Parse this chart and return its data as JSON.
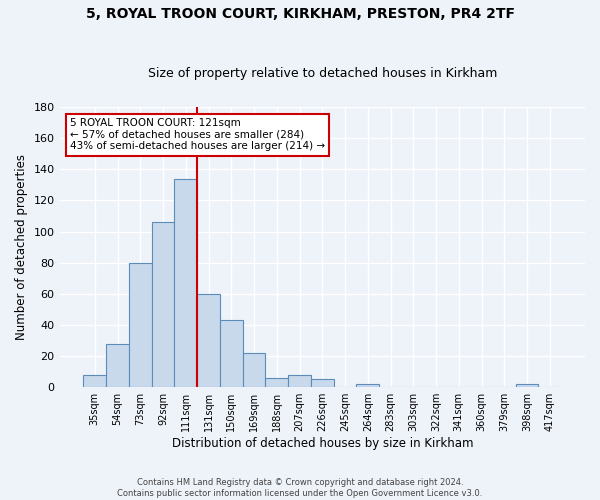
{
  "title": "5, ROYAL TROON COURT, KIRKHAM, PRESTON, PR4 2TF",
  "subtitle": "Size of property relative to detached houses in Kirkham",
  "xlabel": "Distribution of detached houses by size in Kirkham",
  "ylabel": "Number of detached properties",
  "bar_labels": [
    "35sqm",
    "54sqm",
    "73sqm",
    "92sqm",
    "111sqm",
    "131sqm",
    "150sqm",
    "169sqm",
    "188sqm",
    "207sqm",
    "226sqm",
    "245sqm",
    "264sqm",
    "283sqm",
    "303sqm",
    "322sqm",
    "341sqm",
    "360sqm",
    "379sqm",
    "398sqm",
    "417sqm"
  ],
  "bar_values": [
    8,
    28,
    80,
    106,
    134,
    60,
    43,
    22,
    6,
    8,
    5,
    0,
    2,
    0,
    0,
    0,
    0,
    0,
    0,
    2,
    0
  ],
  "bar_color": "#c9d9ec",
  "bar_edge_color": "#5b8db8",
  "ylim": [
    0,
    180
  ],
  "yticks": [
    0,
    20,
    40,
    60,
    80,
    100,
    120,
    140,
    160,
    180
  ],
  "annotation_title": "5 ROYAL TROON COURT: 121sqm",
  "annotation_line1": "← 57% of detached houses are smaller (284)",
  "annotation_line2": "43% of semi-detached houses are larger (214) →",
  "annotation_box_color": "#ffffff",
  "annotation_box_edge": "#cc0000",
  "red_line_color": "#cc0000",
  "footer1": "Contains HM Land Registry data © Crown copyright and database right 2024.",
  "footer2": "Contains public sector information licensed under the Open Government Licence v3.0.",
  "background_color": "#eef2f9",
  "grid_color": "#ffffff"
}
